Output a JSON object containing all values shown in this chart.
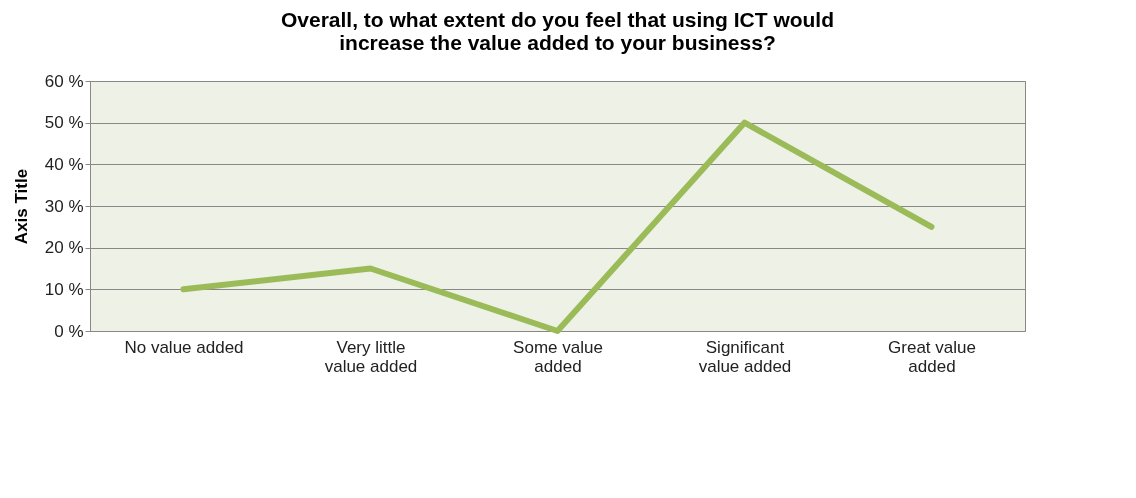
{
  "chart_data": {
    "type": "line",
    "title": "Overall, to what extent do you feel that using ICT would increase the value added to your business?",
    "ylabel": "Axis Title",
    "categories": [
      "No value added",
      "Very little value added",
      "Some value added",
      "Significant value added",
      "Great value added"
    ],
    "series": [
      {
        "color": "#9bbb59",
        "values": [
          10,
          15,
          0,
          50,
          25
        ]
      }
    ],
    "ylim": [
      0,
      60
    ],
    "yticks": [
      {
        "value": 0,
        "label": "0 %"
      },
      {
        "value": 10,
        "label": "10 %"
      },
      {
        "value": 20,
        "label": "20 %"
      },
      {
        "value": 30,
        "label": "30 %"
      },
      {
        "value": 40,
        "label": "40 %"
      },
      {
        "value": 50,
        "label": "50 %"
      },
      {
        "value": 60,
        "label": "60 %"
      }
    ],
    "grid": "y",
    "marker": "none",
    "line_style": "solid"
  }
}
